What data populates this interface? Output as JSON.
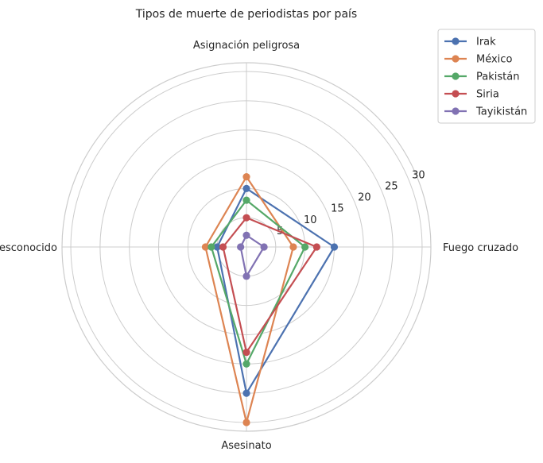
{
  "chart_data": {
    "type": "radar",
    "title": "Tipos de muerte de periodistas por país",
    "axes": [
      "Fuego cruzado",
      "Asesinato",
      "Desconocido",
      "Asignación peligrosa"
    ],
    "rticks": [
      5,
      10,
      15,
      20,
      25,
      30
    ],
    "rmax": 31.5,
    "grid": true,
    "legend_position": "upper-right",
    "series": [
      {
        "name": "Irak",
        "color": "#4c72b0",
        "values": [
          15,
          25,
          5,
          10
        ]
      },
      {
        "name": "México",
        "color": "#dd8452",
        "values": [
          8,
          30,
          7,
          12
        ]
      },
      {
        "name": "Pakistán",
        "color": "#55a868",
        "values": [
          10,
          20,
          6,
          8
        ]
      },
      {
        "name": "Siria",
        "color": "#c44e52",
        "values": [
          12,
          18,
          4,
          5
        ]
      },
      {
        "name": "Tayikistán",
        "color": "#8172b3",
        "values": [
          3,
          5,
          1,
          2
        ]
      }
    ]
  }
}
